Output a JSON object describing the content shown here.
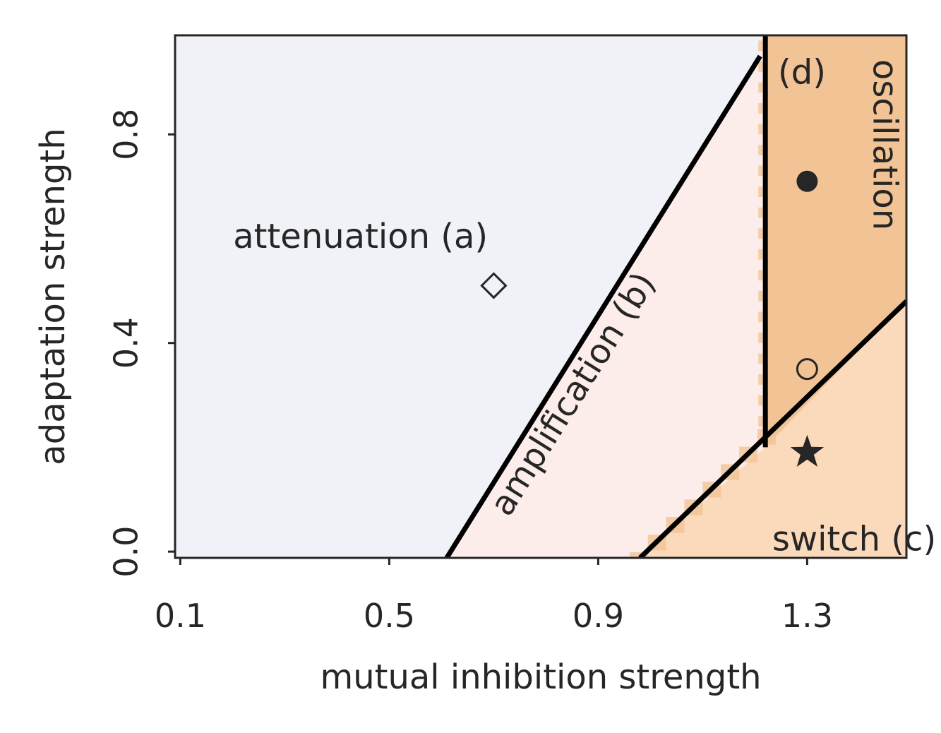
{
  "chart_data": {
    "type": "heatmap",
    "title": "",
    "xlabel": "mutual inhibition strength",
    "ylabel": "adaptation strength",
    "xlim": [
      0.09,
      1.49
    ],
    "ylim": [
      -0.012,
      0.99
    ],
    "xticks": [
      0.1,
      0.5,
      0.9,
      1.3
    ],
    "xtick_labels": [
      "0.1",
      "0.5",
      "0.9",
      "1.3"
    ],
    "yticks": [
      0.0,
      0.4,
      0.8
    ],
    "ytick_labels": [
      "0.0",
      "0.4",
      "0.8"
    ],
    "grid": false,
    "legend": "none",
    "colors": {
      "attenuation": "#f1f2f7",
      "amplification": "#fcedea",
      "switch": "#fbd9bb",
      "oscillation": "#f1c395",
      "boundary": "#000000",
      "text": "#262626"
    },
    "boundaries": [
      {
        "id": "attenuation-amplification",
        "points": [
          [
            0.61,
            -0.012
          ],
          [
            1.21,
            0.95
          ]
        ]
      },
      {
        "id": "amplification-oscillation",
        "points": [
          [
            1.22,
            0.99
          ],
          [
            1.22,
            0.2
          ]
        ]
      },
      {
        "id": "switch-boundary",
        "points": [
          [
            0.98,
            -0.012
          ],
          [
            1.49,
            0.48
          ]
        ]
      }
    ],
    "regions": [
      {
        "id": "attenuation",
        "label": "attenuation (a)",
        "x": 0.445,
        "y": 0.6,
        "rotation": 0
      },
      {
        "id": "amplification",
        "label": "amplification (b)",
        "x": 0.855,
        "y": 0.3,
        "rotation": -58
      },
      {
        "id": "switch",
        "label": "switch (c)",
        "x": 1.39,
        "y": 0.02,
        "rotation": 0
      },
      {
        "id": "oscillation-d",
        "label": "(d)",
        "x": 1.29,
        "y": 0.915,
        "rotation": 0
      },
      {
        "id": "oscillation",
        "label": "oscillation",
        "x": 1.445,
        "y": 0.78,
        "rotation": 90
      }
    ],
    "markers": [
      {
        "id": "diamond",
        "symbol": "open-diamond",
        "x": 0.7,
        "y": 0.51
      },
      {
        "id": "filled-circle",
        "symbol": "filled-circle",
        "x": 1.3,
        "y": 0.71
      },
      {
        "id": "open-circle",
        "symbol": "open-circle",
        "x": 1.3,
        "y": 0.35
      },
      {
        "id": "star",
        "symbol": "star",
        "x": 1.3,
        "y": 0.19
      }
    ]
  }
}
